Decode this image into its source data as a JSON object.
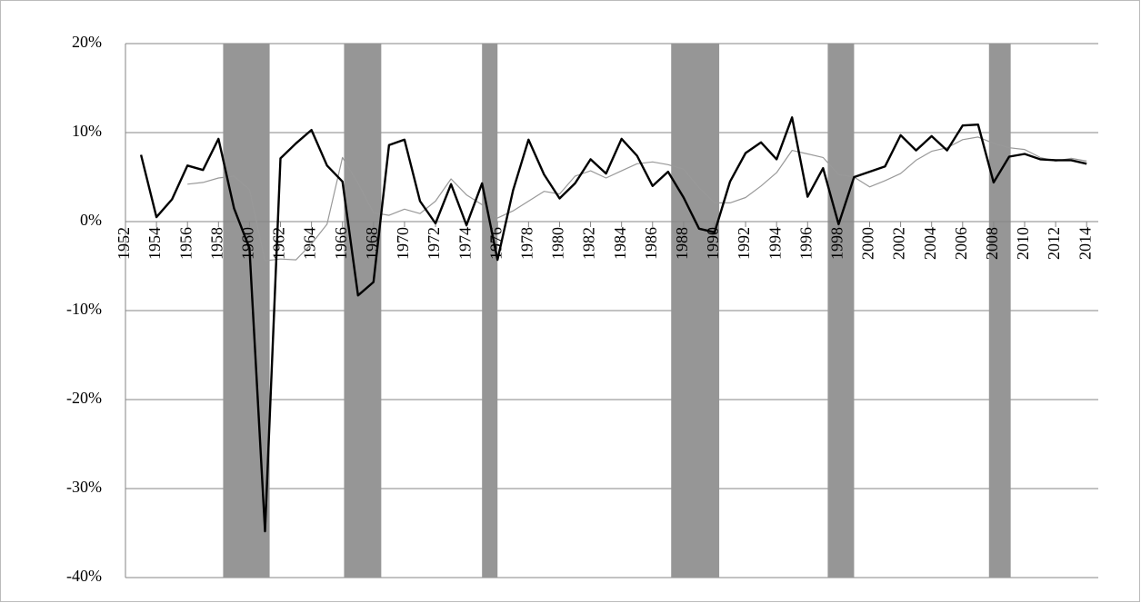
{
  "chart_data": {
    "type": "line",
    "x": [
      1953,
      1954,
      1955,
      1956,
      1957,
      1958,
      1959,
      1960,
      1961,
      1962,
      1963,
      1964,
      1965,
      1966,
      1967,
      1968,
      1969,
      1970,
      1971,
      1972,
      1973,
      1974,
      1975,
      1976,
      1977,
      1978,
      1979,
      1980,
      1981,
      1982,
      1983,
      1984,
      1985,
      1986,
      1987,
      1988,
      1989,
      1990,
      1991,
      1992,
      1993,
      1994,
      1995,
      1996,
      1997,
      1998,
      1999,
      2000,
      2001,
      2002,
      2003,
      2004,
      2005,
      2006,
      2007,
      2008,
      2009,
      2010,
      2011,
      2012,
      2013,
      2014
    ],
    "series": [
      {
        "color": "#000000",
        "values": [
          7.5,
          0.5,
          2.5,
          6.3,
          5.8,
          9.3,
          1.5,
          -3,
          -34.8,
          7.1,
          8.8,
          10.3,
          6.3,
          4.5,
          -8.3,
          -6.8,
          8.6,
          9.2,
          2.3,
          -0.2,
          4.2,
          -0.4,
          4.3,
          -4.3,
          3.5,
          9.2,
          5.3,
          2.6,
          4.3,
          7.0,
          5.4,
          9.3,
          7.4,
          4.0,
          5.6,
          2.7,
          -0.8,
          -1.2,
          4.5,
          7.7,
          8.9,
          7.0,
          11.7,
          2.8,
          6.0,
          -0.3,
          5.0,
          5.6,
          6.2,
          9.7,
          8.0,
          9.6,
          8.0,
          10.8,
          10.9,
          4.4,
          7.3,
          7.6,
          7.0,
          6.9,
          6.9,
          6.5
        ]
      },
      {
        "color": "#999999",
        "values": [
          null,
          null,
          null,
          4.2,
          4.4,
          4.9,
          5.1,
          3.6,
          -4.4,
          -4.2,
          -4.3,
          -2.5,
          -0.3,
          7.2,
          4.3,
          1.0,
          0.7,
          1.4,
          0.9,
          2.3,
          4.8,
          3.0,
          1.9,
          0.4,
          1.2,
          2.3,
          3.4,
          3.1,
          5.1,
          5.7,
          4.9,
          5.7,
          6.5,
          6.7,
          6.4,
          5.9,
          3.8,
          2.1,
          2.1,
          2.7,
          4.0,
          5.5,
          8.0,
          7.6,
          7.2,
          5.3,
          5.0,
          3.9,
          4.6,
          5.4,
          6.9,
          7.9,
          8.3,
          9.2,
          9.5,
          8.8,
          8.3,
          8.1,
          7.2,
          6.8,
          7.1,
          6.8
        ]
      }
    ],
    "shaded_ranges": [
      [
        1958.3,
        1961.3
      ],
      [
        1966.1,
        1968.5
      ],
      [
        1975.0,
        1976.0
      ],
      [
        1987.2,
        1990.3
      ],
      [
        1997.3,
        1999.0
      ],
      [
        2007.7,
        2009.1
      ]
    ],
    "shade_color": "#969696",
    "xlim": [
      1952,
      2014.75
    ],
    "xticks": [
      1952,
      1954,
      1956,
      1958,
      1960,
      1962,
      1964,
      1966,
      1968,
      1970,
      1972,
      1974,
      1976,
      1978,
      1980,
      1982,
      1984,
      1986,
      1988,
      1990,
      1992,
      1994,
      1996,
      1998,
      2000,
      2002,
      2004,
      2006,
      2008,
      2010,
      2012,
      2014
    ],
    "ylim": [
      -40,
      20
    ],
    "yticks": [
      {
        "value": -40,
        "label": "-40%"
      },
      {
        "value": -30,
        "label": "-30%"
      },
      {
        "value": -20,
        "label": "-20%"
      },
      {
        "value": -10,
        "label": "-10%"
      },
      {
        "value": 0,
        "label": "0%"
      },
      {
        "value": 10,
        "label": "10%"
      },
      {
        "value": 20,
        "label": "20%"
      }
    ],
    "grid": true
  }
}
